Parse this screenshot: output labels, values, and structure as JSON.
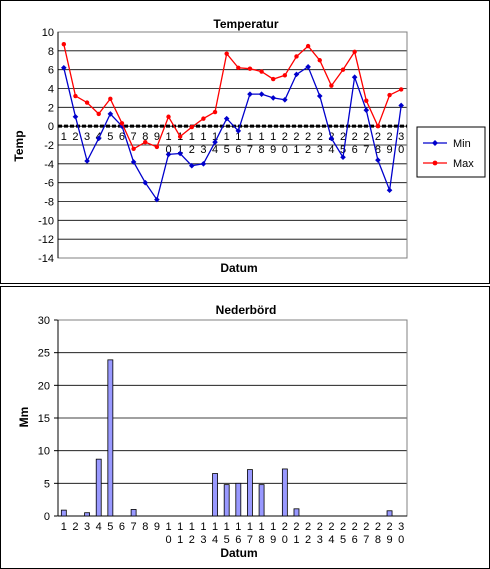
{
  "chart_data": [
    {
      "type": "line",
      "title": "Temperatur",
      "xlabel": "Datum",
      "ylabel": "Temp",
      "ylim": [
        -14,
        10
      ],
      "y_ticks": [
        "10",
        "8",
        "6",
        "4",
        "2",
        "0",
        "-2",
        "-4",
        "-6",
        "-8",
        "-10",
        "-12",
        "-14"
      ],
      "x_tick_labels": [
        [
          "1"
        ],
        [
          "2"
        ],
        [
          "3"
        ],
        [
          "4"
        ],
        [
          "5"
        ],
        [
          "6"
        ],
        [
          "7"
        ],
        [
          "8"
        ],
        [
          "9"
        ],
        [
          "1",
          "0"
        ],
        [
          "1",
          "1"
        ],
        [
          "1",
          "2"
        ],
        [
          "1",
          "3"
        ],
        [
          "1",
          "4"
        ],
        [
          "1",
          "5"
        ],
        [
          "1",
          "6"
        ],
        [
          "1",
          "7"
        ],
        [
          "1",
          "8"
        ],
        [
          "1",
          "9"
        ],
        [
          "2",
          "0"
        ],
        [
          "2",
          "1"
        ],
        [
          "2",
          "2"
        ],
        [
          "2",
          "3"
        ],
        [
          "2",
          "4"
        ],
        [
          "2",
          "5"
        ],
        [
          "2",
          "6"
        ],
        [
          "2",
          "7"
        ],
        [
          "2",
          "8"
        ],
        [
          "2",
          "9"
        ],
        [
          "3",
          "0"
        ]
      ],
      "grid": "horizontal",
      "legend_position": "right",
      "series": [
        {
          "name": "Min",
          "color": "#0000cc",
          "marker": "diamond",
          "values": [
            6.2,
            1.0,
            -3.7,
            -1.3,
            1.3,
            0.0,
            -3.8,
            -6.0,
            -7.8,
            -3.0,
            -2.9,
            -4.2,
            -4.0,
            -1.7,
            0.8,
            -0.5,
            3.4,
            3.4,
            3.0,
            2.8,
            5.5,
            6.3,
            3.2,
            -1.3,
            -3.3,
            5.2,
            1.7,
            -3.6,
            -6.8,
            2.2
          ]
        },
        {
          "name": "Max",
          "color": "#ff0000",
          "marker": "circle",
          "values": [
            8.7,
            3.2,
            2.5,
            1.3,
            2.9,
            0.3,
            -2.4,
            -1.7,
            -2.2,
            1.0,
            -1.1,
            -0.1,
            0.8,
            1.5,
            7.7,
            6.2,
            6.1,
            5.8,
            5.0,
            5.4,
            7.4,
            8.5,
            7.0,
            4.3,
            6.0,
            7.9,
            2.7,
            0.0,
            3.3,
            3.9
          ]
        }
      ]
    },
    {
      "type": "bar",
      "title": "Nederbörd",
      "xlabel": "Datum",
      "ylabel": "Mm",
      "ylim": [
        0,
        30
      ],
      "y_ticks": [
        "30",
        "25",
        "20",
        "15",
        "10",
        "5",
        "0"
      ],
      "x_tick_labels": [
        [
          "1"
        ],
        [
          "2"
        ],
        [
          "3"
        ],
        [
          "4"
        ],
        [
          "5"
        ],
        [
          "6"
        ],
        [
          "7"
        ],
        [
          "8"
        ],
        [
          "9"
        ],
        [
          "1",
          "0"
        ],
        [
          "1",
          "1"
        ],
        [
          "1",
          "2"
        ],
        [
          "1",
          "3"
        ],
        [
          "1",
          "4"
        ],
        [
          "1",
          "5"
        ],
        [
          "1",
          "6"
        ],
        [
          "1",
          "7"
        ],
        [
          "1",
          "8"
        ],
        [
          "1",
          "9"
        ],
        [
          "2",
          "0"
        ],
        [
          "2",
          "1"
        ],
        [
          "2",
          "2"
        ],
        [
          "2",
          "3"
        ],
        [
          "2",
          "4"
        ],
        [
          "2",
          "5"
        ],
        [
          "2",
          "6"
        ],
        [
          "2",
          "7"
        ],
        [
          "2",
          "8"
        ],
        [
          "2",
          "9"
        ],
        [
          "3",
          "0"
        ]
      ],
      "grid": "horizontal",
      "bar_color": "#9999ff",
      "values": [
        0.9,
        0,
        0.5,
        8.7,
        23.9,
        0,
        1.0,
        0,
        0,
        0,
        0,
        0,
        0,
        6.5,
        4.8,
        5.0,
        7.1,
        4.8,
        0,
        7.2,
        1.1,
        0,
        0,
        0,
        0,
        0,
        0,
        0,
        0.8,
        0
      ]
    }
  ]
}
